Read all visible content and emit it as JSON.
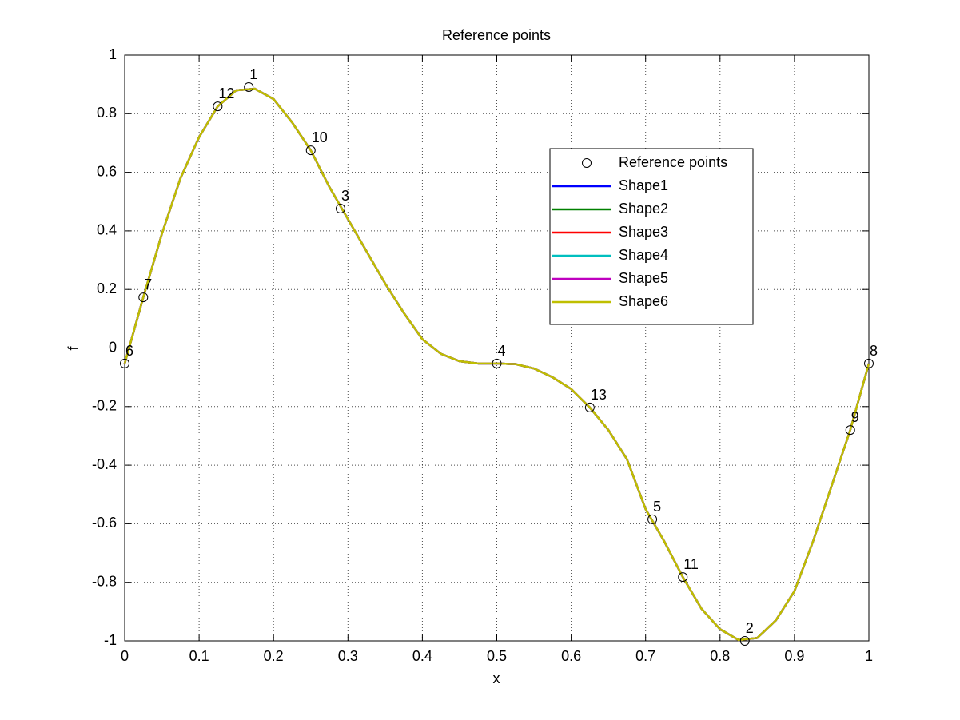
{
  "chart_data": {
    "type": "line",
    "title": "Reference points",
    "xlabel": "x",
    "ylabel": "f",
    "xlim": [
      0,
      1
    ],
    "ylim": [
      -1,
      1
    ],
    "xticks": [
      0,
      0.1,
      0.2,
      0.3,
      0.4,
      0.5,
      0.6,
      0.7,
      0.8,
      0.9,
      1
    ],
    "yticks": [
      -1,
      -0.8,
      -0.6,
      -0.4,
      -0.2,
      0,
      0.2,
      0.4,
      0.6,
      0.8,
      1
    ],
    "grid": true,
    "legend": "northeast",
    "x": [
      0,
      0.025,
      0.05,
      0.075,
      0.1,
      0.125,
      0.15,
      0.175,
      0.2,
      0.225,
      0.25,
      0.275,
      0.3,
      0.325,
      0.35,
      0.375,
      0.4,
      0.425,
      0.45,
      0.475,
      0.5,
      0.525,
      0.55,
      0.575,
      0.6,
      0.625,
      0.65,
      0.675,
      0.7,
      0.725,
      0.75,
      0.775,
      0.8,
      0.825,
      0.85,
      0.875,
      0.9,
      0.925,
      0.95,
      0.975,
      1
    ],
    "reference_points": {
      "name": "Reference points",
      "color": "#000000",
      "x": [
        0.1667,
        0.8333,
        0.29,
        0.5,
        0.709,
        0,
        0.025,
        1,
        0.975,
        0.25,
        0.75,
        0.125,
        0.625
      ],
      "values": [
        0.891,
        -1,
        0.476,
        -0.053,
        -0.585,
        -0.053,
        0.173,
        -0.053,
        -0.28,
        0.675,
        -0.782,
        0.825,
        -0.203
      ],
      "point_labels": [
        "1",
        "2",
        "3",
        "4",
        "5",
        "6",
        "7",
        "8",
        "9",
        "10",
        "11",
        "12",
        "13"
      ]
    },
    "series": [
      {
        "name": "Shape1",
        "color": "#0000ff",
        "values": [
          -0.053,
          0.173,
          0.39,
          0.58,
          0.72,
          0.825,
          0.88,
          0.885,
          0.85,
          0.77,
          0.675,
          0.55,
          0.44,
          0.33,
          0.22,
          0.12,
          0.03,
          -0.02,
          -0.045,
          -0.053,
          -0.053,
          -0.055,
          -0.07,
          -0.1,
          -0.14,
          -0.203,
          -0.28,
          -0.38,
          -0.55,
          -0.66,
          -0.782,
          -0.89,
          -0.96,
          -0.997,
          -0.99,
          -0.93,
          -0.83,
          -0.66,
          -0.47,
          -0.28,
          -0.053
        ]
      },
      {
        "name": "Shape2",
        "color": "#008000",
        "values": [
          -0.053,
          0.173,
          0.39,
          0.58,
          0.72,
          0.825,
          0.88,
          0.885,
          0.85,
          0.77,
          0.675,
          0.55,
          0.44,
          0.33,
          0.22,
          0.12,
          0.03,
          -0.02,
          -0.045,
          -0.053,
          -0.053,
          -0.055,
          -0.07,
          -0.1,
          -0.14,
          -0.203,
          -0.28,
          -0.38,
          -0.55,
          -0.66,
          -0.782,
          -0.89,
          -0.96,
          -0.997,
          -0.99,
          -0.93,
          -0.83,
          -0.66,
          -0.47,
          -0.28,
          -0.053
        ]
      },
      {
        "name": "Shape3",
        "color": "#ff0000",
        "values": [
          -0.053,
          0.173,
          0.39,
          0.58,
          0.72,
          0.825,
          0.88,
          0.885,
          0.85,
          0.77,
          0.675,
          0.55,
          0.44,
          0.33,
          0.22,
          0.12,
          0.03,
          -0.02,
          -0.045,
          -0.053,
          -0.053,
          -0.055,
          -0.07,
          -0.1,
          -0.14,
          -0.203,
          -0.28,
          -0.38,
          -0.55,
          -0.66,
          -0.782,
          -0.89,
          -0.96,
          -0.997,
          -0.99,
          -0.93,
          -0.83,
          -0.66,
          -0.47,
          -0.28,
          -0.053
        ]
      },
      {
        "name": "Shape4",
        "color": "#00bfbf",
        "values": [
          -0.053,
          0.173,
          0.39,
          0.58,
          0.72,
          0.825,
          0.88,
          0.885,
          0.85,
          0.77,
          0.675,
          0.55,
          0.44,
          0.33,
          0.22,
          0.12,
          0.03,
          -0.02,
          -0.045,
          -0.053,
          -0.053,
          -0.055,
          -0.07,
          -0.1,
          -0.14,
          -0.203,
          -0.28,
          -0.38,
          -0.55,
          -0.66,
          -0.782,
          -0.89,
          -0.96,
          -0.997,
          -0.99,
          -0.93,
          -0.83,
          -0.66,
          -0.47,
          -0.28,
          -0.053
        ]
      },
      {
        "name": "Shape5",
        "color": "#bf00bf",
        "values": [
          -0.053,
          0.173,
          0.39,
          0.58,
          0.72,
          0.825,
          0.88,
          0.885,
          0.85,
          0.77,
          0.675,
          0.55,
          0.44,
          0.33,
          0.22,
          0.12,
          0.03,
          -0.02,
          -0.045,
          -0.053,
          -0.053,
          -0.055,
          -0.07,
          -0.1,
          -0.14,
          -0.203,
          -0.28,
          -0.38,
          -0.55,
          -0.66,
          -0.782,
          -0.89,
          -0.96,
          -0.997,
          -0.99,
          -0.93,
          -0.83,
          -0.66,
          -0.47,
          -0.28,
          -0.053
        ]
      },
      {
        "name": "Shape6",
        "color": "#bfbf00",
        "values": [
          -0.053,
          0.173,
          0.39,
          0.58,
          0.72,
          0.825,
          0.88,
          0.885,
          0.85,
          0.77,
          0.675,
          0.55,
          0.44,
          0.33,
          0.22,
          0.12,
          0.03,
          -0.02,
          -0.045,
          -0.053,
          -0.053,
          -0.055,
          -0.07,
          -0.1,
          -0.14,
          -0.203,
          -0.28,
          -0.38,
          -0.55,
          -0.66,
          -0.782,
          -0.89,
          -0.96,
          -0.997,
          -0.99,
          -0.93,
          -0.83,
          -0.66,
          -0.47,
          -0.28,
          -0.053
        ]
      }
    ]
  }
}
